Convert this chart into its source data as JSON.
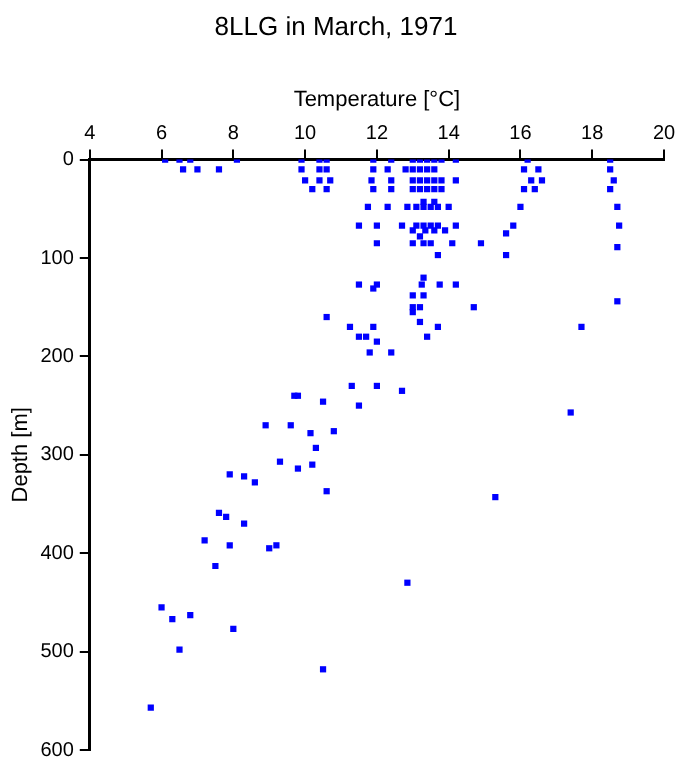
{
  "chart_data": {
    "type": "scatter",
    "title": "8LLG in March, 1971",
    "xlabel": "Temperature [°C]",
    "ylabel": "Depth [m]",
    "xlim": [
      4,
      20
    ],
    "xticks": [
      4,
      6,
      8,
      10,
      12,
      14,
      16,
      18,
      20
    ],
    "ylim": [
      600,
      0
    ],
    "yticks": [
      0,
      100,
      200,
      300,
      400,
      500,
      600
    ],
    "grid": false,
    "legend": false,
    "marker": "square",
    "series": [
      {
        "color": "#0000ff",
        "x": [
          6.1,
          6.5,
          6.8,
          8.1,
          9.9,
          10.4,
          10.6,
          11.9,
          12.4,
          13.0,
          13.2,
          13.4,
          13.6,
          13.8,
          14.2,
          16.2,
          18.5,
          6.6,
          7.0,
          7.6,
          9.9,
          10.4,
          10.6,
          11.9,
          12.3,
          12.8,
          13.0,
          13.2,
          13.4,
          13.6,
          16.1,
          16.5,
          18.5,
          10.0,
          10.4,
          10.7,
          11.85,
          12.4,
          13.0,
          13.2,
          13.4,
          13.6,
          13.8,
          14.2,
          16.3,
          16.6,
          18.6,
          10.2,
          10.6,
          11.9,
          12.4,
          13.0,
          13.2,
          13.4,
          13.6,
          13.8,
          16.1,
          16.4,
          18.5,
          13.3,
          13.6,
          11.75,
          12.3,
          12.85,
          13.1,
          13.3,
          13.5,
          13.7,
          14.0,
          16.0,
          18.7,
          11.5,
          12.0,
          12.7,
          13.1,
          13.3,
          13.5,
          13.7,
          14.2,
          15.8,
          18.75,
          13.0,
          13.35,
          13.6,
          13.9,
          15.6,
          13.2,
          12.0,
          13.0,
          13.3,
          13.5,
          14.1,
          14.9,
          18.7,
          15.6,
          13.7,
          13.3,
          11.5,
          12.0,
          13.25,
          13.75,
          14.2,
          11.9,
          13.0,
          13.3,
          18.7,
          13.0,
          13.2,
          14.7,
          13.0,
          10.6,
          13.2,
          11.25,
          11.9,
          13.7,
          17.7,
          11.5,
          11.7,
          13.4,
          12.0,
          11.8,
          12.4,
          11.3,
          12.0,
          12.7,
          9.7,
          9.8,
          10.5,
          11.5,
          17.4,
          8.9,
          9.6,
          10.15,
          10.8,
          10.3,
          9.3,
          9.8,
          10.2,
          10.6,
          7.9,
          8.3,
          8.6,
          7.6,
          7.8,
          8.3,
          7.2,
          7.9,
          9.0,
          9.2,
          7.5,
          6.0,
          6.3,
          6.8,
          8.0,
          6.5,
          10.5,
          5.7,
          15.3,
          12.85
        ],
        "values": [
          0,
          0,
          0,
          0,
          0,
          0,
          0,
          0,
          0,
          0,
          0,
          0,
          0,
          0,
          0,
          0,
          0,
          10,
          10,
          10,
          10,
          10,
          10,
          10,
          10,
          10,
          10,
          10,
          10,
          10,
          10,
          10,
          10,
          21,
          21,
          21,
          21,
          21,
          21,
          21,
          21,
          21,
          21,
          21,
          21,
          21,
          21,
          30,
          30,
          30,
          30,
          30,
          30,
          30,
          30,
          30,
          30,
          30,
          30,
          43,
          43,
          48,
          48,
          48,
          48,
          48,
          48,
          48,
          48,
          48,
          48,
          67,
          67,
          67,
          67,
          67,
          67,
          67,
          67,
          67,
          67,
          72,
          72,
          72,
          72,
          75,
          78,
          85,
          85,
          85,
          85,
          85,
          85,
          89,
          97,
          97,
          120,
          127,
          127,
          127,
          127,
          127,
          131,
          138,
          138,
          144,
          150,
          150,
          150,
          155,
          160,
          165,
          170,
          170,
          170,
          170,
          180,
          180,
          180,
          185,
          196,
          196,
          230,
          230,
          235,
          240,
          240,
          246,
          250,
          257,
          270,
          270,
          278,
          276,
          293,
          307,
          314,
          310,
          337,
          320,
          322,
          328,
          359,
          363,
          370,
          387,
          392,
          395,
          392,
          413,
          455,
          467,
          463,
          477,
          498,
          518,
          557,
          343,
          430
        ]
      }
    ]
  }
}
